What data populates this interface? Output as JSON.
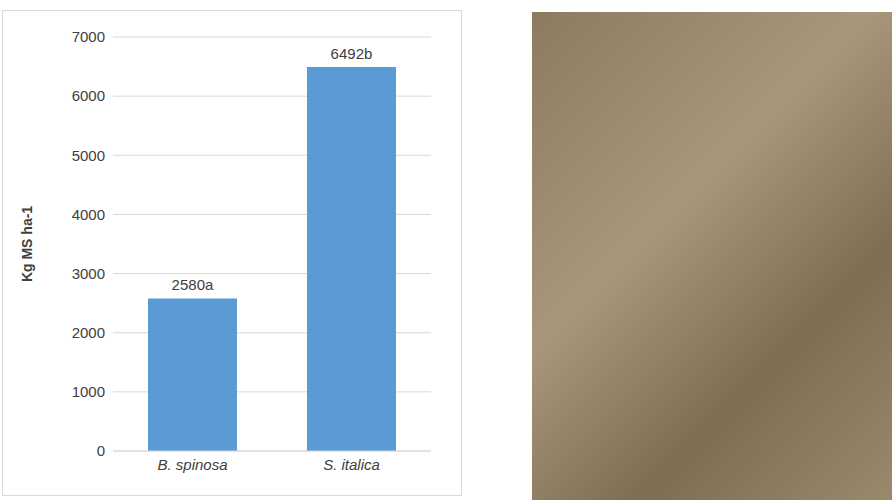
{
  "chart_data": {
    "type": "bar",
    "categories": [
      "B. spinosa",
      "S. italica"
    ],
    "values": [
      2580,
      6492
    ],
    "value_labels": [
      "2580a",
      "6492b"
    ],
    "data_labels": true,
    "y_label": "Kg MS ha-1",
    "color": "#5b9bd5",
    "ylim": [
      0,
      7000
    ],
    "yticks": [
      0,
      1000,
      2000,
      3000,
      4000,
      5000,
      6000,
      7000
    ],
    "grid": true
  }
}
